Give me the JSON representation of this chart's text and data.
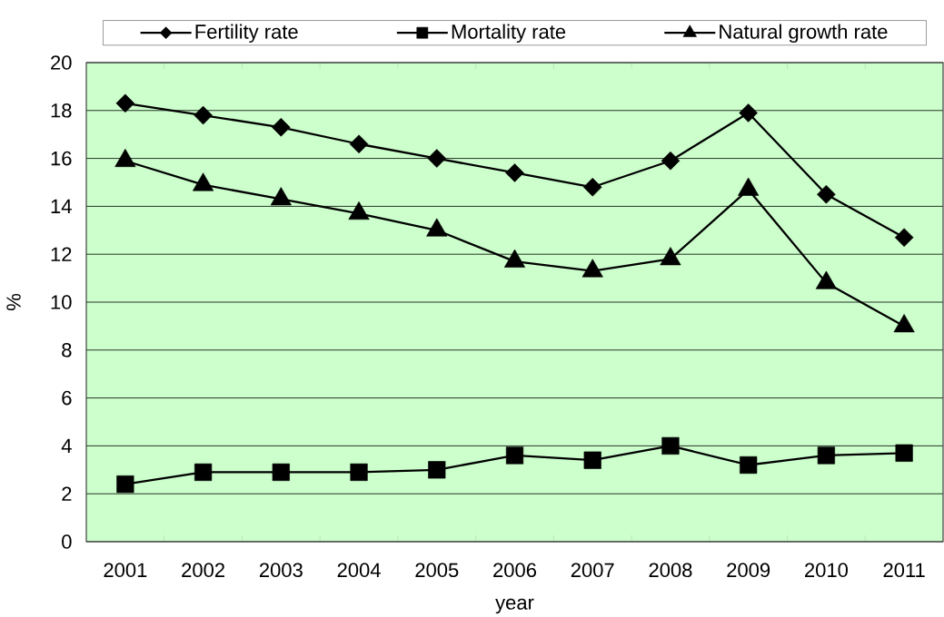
{
  "chart_data": {
    "type": "line",
    "xlabel": "year",
    "ylabel": "%",
    "categories": [
      "2001",
      "2002",
      "2003",
      "2004",
      "2005",
      "2006",
      "2007",
      "2008",
      "2009",
      "2010",
      "2011"
    ],
    "series": [
      {
        "name": "Fertility rate",
        "color": "#000000",
        "marker": "diamond",
        "values": [
          18.3,
          17.8,
          17.3,
          16.6,
          16.0,
          15.4,
          14.8,
          15.9,
          17.9,
          14.5,
          12.7
        ]
      },
      {
        "name": "Mortality rate",
        "color": "#000000",
        "marker": "square",
        "values": [
          2.4,
          2.9,
          2.9,
          2.9,
          3.0,
          3.6,
          3.4,
          4.0,
          3.2,
          3.6,
          3.7
        ]
      },
      {
        "name": "Natural growth rate",
        "color": "#000000",
        "marker": "triangle",
        "values": [
          15.9,
          14.9,
          14.3,
          13.7,
          13.0,
          11.7,
          11.3,
          11.8,
          14.7,
          10.8,
          9.0
        ]
      }
    ],
    "ylim": [
      0,
      20
    ],
    "yticks": [
      0,
      2,
      4,
      6,
      8,
      10,
      12,
      14,
      16,
      18,
      20
    ],
    "grid": "y",
    "legend": "top",
    "line_style": "solid"
  }
}
